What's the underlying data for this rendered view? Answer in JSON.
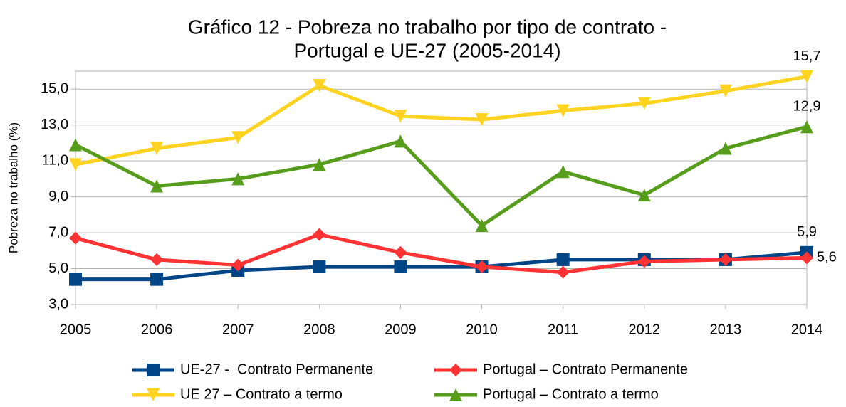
{
  "chart_data": {
    "type": "line",
    "title": [
      "Gráfico 12 - Pobreza no trabalho por tipo de contrato -",
      "Portugal e UE-27 (2005-2014)"
    ],
    "y_label": "Pobreza no trabalho (%)",
    "categories": [
      "2005",
      "2006",
      "2007",
      "2008",
      "2009",
      "2010",
      "2011",
      "2012",
      "2013",
      "2014"
    ],
    "ylim": [
      3,
      16
    ],
    "yticks": [
      {
        "value": 3,
        "label": "3,0"
      },
      {
        "value": 5,
        "label": "5,0"
      },
      {
        "value": 7,
        "label": "7,0"
      },
      {
        "value": 9,
        "label": "9,0"
      },
      {
        "value": 11,
        "label": "11,0"
      },
      {
        "value": 13,
        "label": "13,0"
      },
      {
        "value": 15,
        "label": "15,0"
      }
    ],
    "grid": true,
    "legend": "bottom",
    "series": [
      {
        "name": "UE-27 -  Contrato Permanente",
        "color": "#004586",
        "marker": "square",
        "values": [
          4.4,
          4.4,
          4.9,
          5.1,
          5.1,
          5.1,
          5.5,
          5.5,
          5.5,
          5.9
        ],
        "value_labels": [
          null,
          null,
          null,
          null,
          null,
          null,
          null,
          null,
          null,
          "5,9"
        ]
      },
      {
        "name": "Portugal – Contrato Permanente",
        "color": "#ff3333",
        "marker": "diamond",
        "values": [
          6.7,
          5.5,
          5.2,
          6.9,
          5.9,
          5.1,
          4.8,
          5.4,
          5.5,
          5.6
        ],
        "value_labels": [
          null,
          null,
          null,
          null,
          null,
          null,
          null,
          null,
          null,
          "5,6"
        ]
      },
      {
        "name": "UE 27 – Contrato a termo",
        "color": "#ffd320",
        "marker": "triangle-down",
        "values": [
          10.8,
          11.7,
          12.3,
          15.2,
          13.5,
          13.3,
          13.8,
          14.2,
          14.9,
          15.7
        ],
        "value_labels": [
          null,
          null,
          null,
          null,
          null,
          null,
          null,
          null,
          null,
          "15,7"
        ]
      },
      {
        "name": "Portugal – Contrato a termo",
        "color": "#579d1c",
        "marker": "triangle-up",
        "values": [
          11.9,
          9.6,
          10.0,
          10.8,
          12.1,
          7.4,
          10.4,
          9.1,
          11.7,
          12.9
        ],
        "value_labels": [
          null,
          null,
          null,
          null,
          null,
          null,
          null,
          null,
          null,
          "12,9"
        ]
      }
    ]
  }
}
